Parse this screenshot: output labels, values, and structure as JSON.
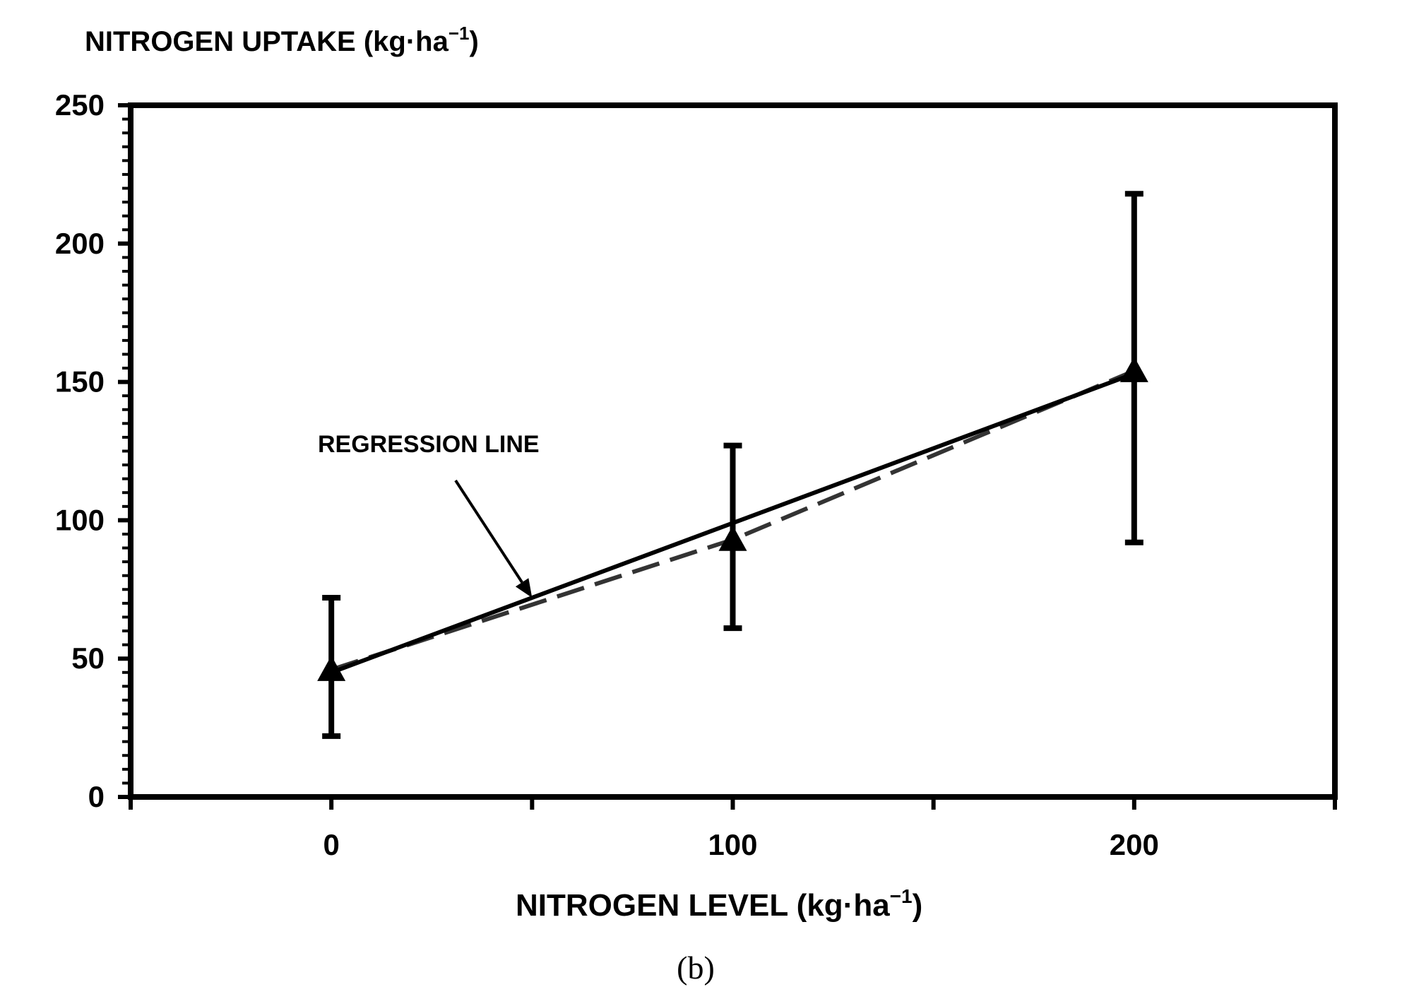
{
  "chart_data": {
    "type": "scatter",
    "ylabel": "NITROGEN UPTAKE (kg·ha",
    "ylabel_sup": "−1",
    "ylabel_close": ")",
    "xlabel": "NITROGEN LEVEL (kg·ha",
    "xlabel_sup": "−1",
    "xlabel_close": ")",
    "caption": "(b)",
    "annotation": "REGRESSION LINE",
    "xlim": [
      -50,
      250
    ],
    "ylim": [
      0,
      250
    ],
    "x_ticks": [
      0,
      100,
      200
    ],
    "y_ticks": [
      0,
      50,
      100,
      150,
      200,
      250
    ],
    "grid": false,
    "points": [
      {
        "x": 0,
        "y": 46,
        "err_low": 22,
        "err_high": 72
      },
      {
        "x": 100,
        "y": 93,
        "err_low": 61,
        "err_high": 127
      },
      {
        "x": 200,
        "y": 154,
        "err_low": 92,
        "err_high": 218
      }
    ],
    "regression": {
      "x": [
        0,
        200
      ],
      "y": [
        45,
        153
      ]
    },
    "trend_dashed": {
      "x": [
        0,
        100,
        200
      ],
      "y": [
        46,
        93,
        154
      ]
    },
    "arrow_target": {
      "x": 50,
      "y": 72
    }
  }
}
